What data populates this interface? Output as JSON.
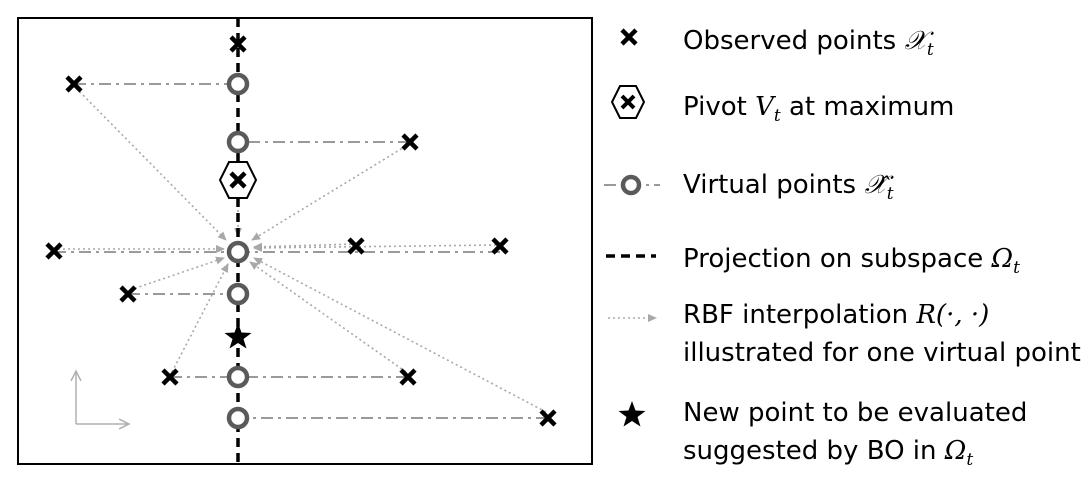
{
  "legend": {
    "observed": {
      "text": "Observed points ",
      "math": "𝒳",
      "sub": "t"
    },
    "pivot": {
      "text_pre": "Pivot ",
      "math": "V",
      "sub": "t",
      "text_post": " at maximum"
    },
    "virtual": {
      "text": "Virtual points ",
      "math": "𝒳̂",
      "sub": "t"
    },
    "projection": {
      "text": "Projection on subspace ",
      "math": "Ω",
      "sub": "t"
    },
    "rbf": {
      "line1_text": "RBF interpolation ",
      "line1_math": "R(·, ·)",
      "line2": "illustrated for one virtual point"
    },
    "new_point": {
      "line1": "New point to be evaluated",
      "line2_text": "suggested by BO in ",
      "line2_math": "Ω",
      "line2_sub": "t"
    }
  },
  "colors": {
    "observed": "#000000",
    "virtual": "#5a5a5a",
    "projection_line": "#000000",
    "dashdot_line": "#9a9a9a",
    "rbf_arrow": "#a8a8a8",
    "axes_arrow": "#b0b0b0"
  }
}
